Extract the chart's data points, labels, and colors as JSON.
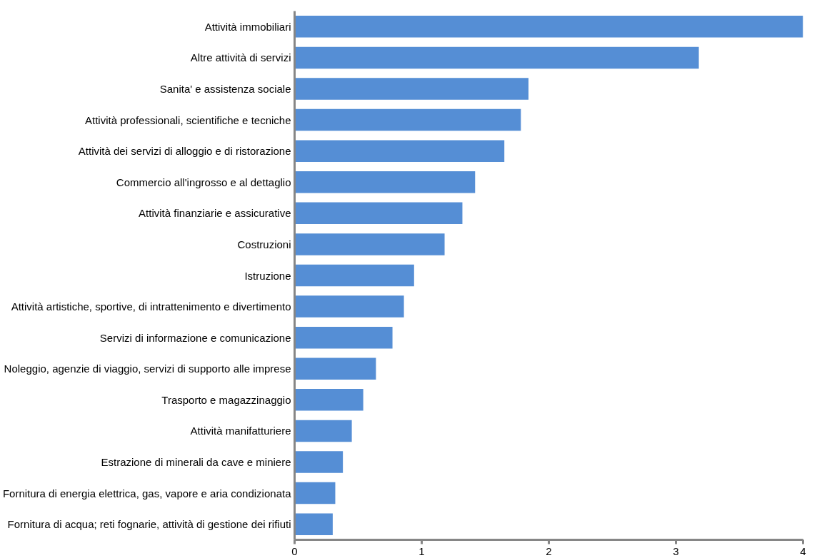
{
  "chart_data": {
    "type": "bar",
    "orientation": "horizontal",
    "categories": [
      "Attività immobiliari",
      "Altre attività di servizi",
      "Sanita' e assistenza sociale",
      "Attività professionali, scientifiche e tecniche",
      "Attività dei servizi di alloggio e di ristorazione",
      "Commercio all'ingrosso e al dettaglio",
      "Attività finanziarie e assicurative",
      "Costruzioni",
      "Istruzione",
      "Attività artistiche, sportive, di intrattenimento e divertimento",
      "Servizi di informazione e comunicazione",
      "Noleggio, agenzie di viaggio, servizi di supporto alle imprese",
      "Trasporto e magazzinaggio",
      "Attività manifatturiere",
      "Estrazione di minerali da cave e miniere",
      "Fornitura di energia elettrica, gas, vapore e aria condizionata",
      "Fornitura di acqua; reti fognarie, attività di gestione dei rifiuti"
    ],
    "values": [
      4.0,
      3.18,
      1.84,
      1.78,
      1.65,
      1.42,
      1.32,
      1.18,
      0.94,
      0.86,
      0.77,
      0.64,
      0.54,
      0.45,
      0.38,
      0.32,
      0.3
    ],
    "color": "#558ed5",
    "xlim": [
      0,
      4
    ],
    "xticks": [
      0,
      1,
      2,
      3,
      4
    ],
    "grid": false
  }
}
